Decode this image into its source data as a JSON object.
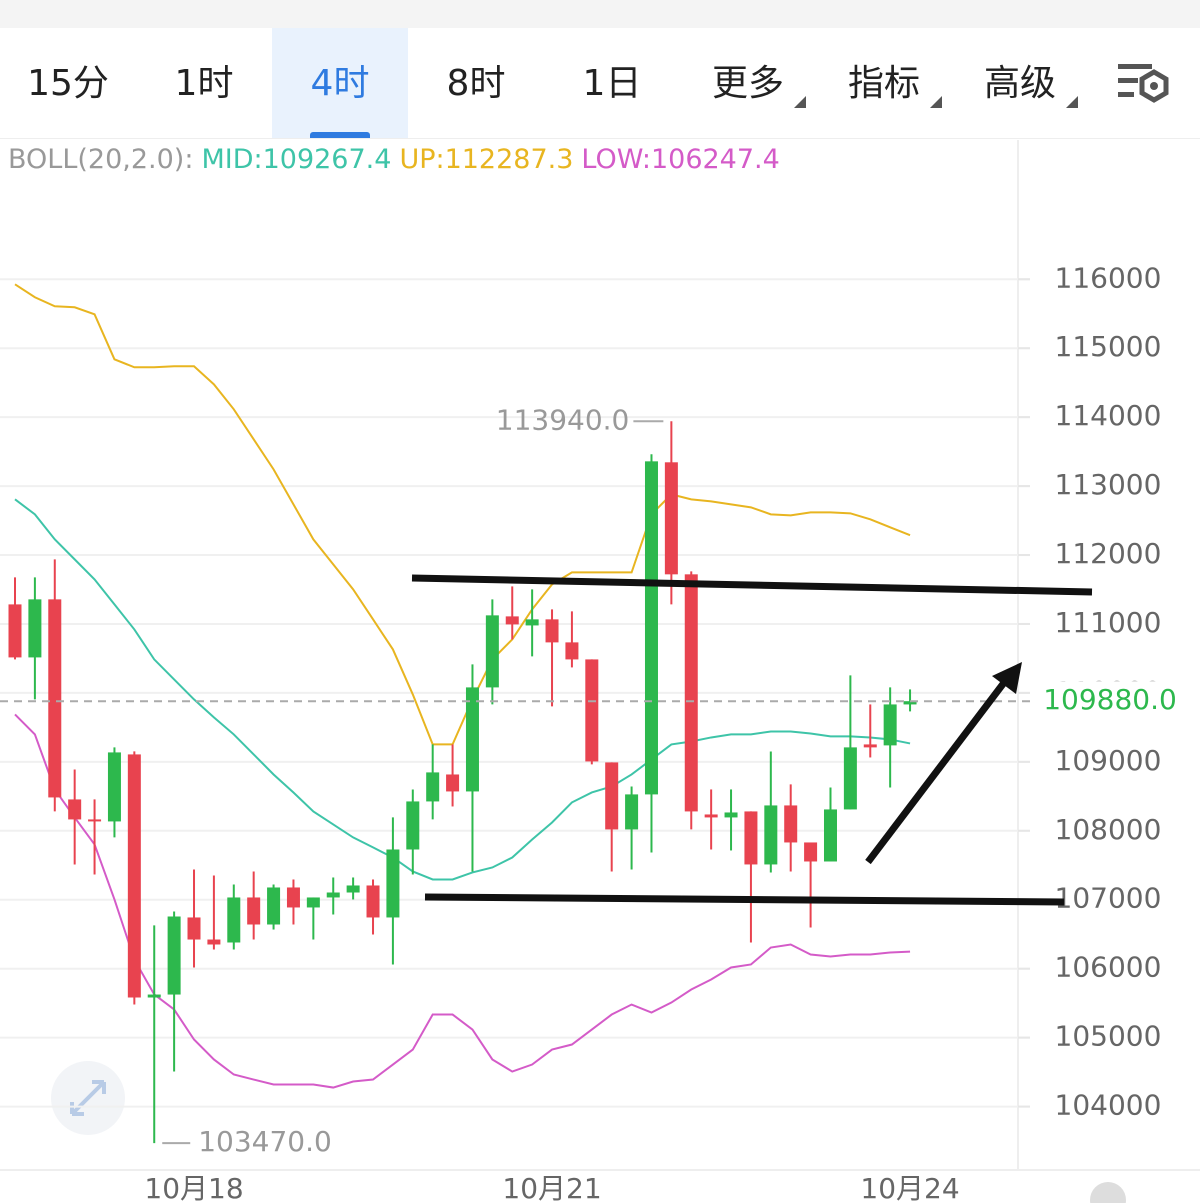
{
  "tabs": [
    "15分",
    "1时",
    "4时",
    "8时",
    "1日",
    "更多",
    "指标",
    "高级"
  ],
  "active_tab": 2,
  "chart_data": {
    "type": "candlestick",
    "indicator": "BOLL(20,2.0):",
    "categories": [
      null,
      null,
      null,
      null,
      null,
      null,
      null,
      null,
      null,
      "10月18",
      null,
      null,
      null,
      null,
      null,
      null,
      null,
      null,
      null,
      null,
      null,
      null,
      null,
      null,
      null,
      null,
      null,
      "10月21",
      null,
      null,
      null,
      null,
      null,
      null,
      null,
      null,
      null,
      null,
      null,
      null,
      null,
      null,
      null,
      null,
      null,
      "10月24"
    ],
    "open": [
      111284,
      110515,
      111357,
      108455,
      108165,
      108136,
      109108,
      105582,
      105625,
      106743,
      106423,
      106380,
      107033,
      106641,
      107178,
      106888,
      107033,
      107105,
      107207,
      106743,
      107729,
      108426,
      108817,
      108571,
      110080,
      111110,
      110979,
      111067,
      110733,
      110486,
      108992,
      108020,
      108528,
      113345,
      111720,
      108237,
      108194,
      108281,
      107512,
      108368,
      107831,
      107555,
      108310,
      109253,
      109239,
      109833
    ],
    "high": [
      111676,
      111676,
      111937,
      108890,
      108455,
      109210,
      109152,
      106628,
      106830,
      107439,
      107352,
      107221,
      107410,
      107221,
      107294,
      107033,
      107323,
      107323,
      107294,
      108194,
      108600,
      109253,
      109253,
      110414,
      111357,
      111545,
      111502,
      111212,
      111183,
      110486,
      108992,
      108643,
      113461,
      113940,
      111763,
      108600,
      108600,
      108281,
      109151,
      108673,
      107831,
      108629,
      110254,
      109833,
      110080,
      110051
    ],
    "low": [
      110486,
      109906,
      108281,
      107512,
      107367,
      107904,
      105480,
      103470,
      104508,
      106017,
      106279,
      106279,
      106423,
      106568,
      106641,
      106423,
      106786,
      107004,
      106496,
      106061,
      107367,
      108165,
      108353,
      107410,
      109833,
      110776,
      110530,
      109804,
      110370,
      108963,
      107410,
      107439,
      107686,
      111284,
      108020,
      107729,
      107715,
      106380,
      107396,
      107410,
      106597,
      107555,
      108310,
      109064,
      108629,
      109732
    ],
    "close": [
      110515,
      111357,
      108484,
      108165,
      108136,
      109137,
      105582,
      105625,
      106757,
      106423,
      106351,
      107033,
      106641,
      107178,
      106888,
      107033,
      107105,
      107207,
      106743,
      107729,
      108426,
      108847,
      108571,
      110080,
      111125,
      110994,
      111067,
      110733,
      110486,
      109006,
      108020,
      108528,
      113359,
      111720,
      108281,
      108194,
      108266,
      107512,
      108368,
      107831,
      107555,
      108310,
      109210,
      109210,
      109833,
      109880
    ],
    "up_color": "#2db84d",
    "down_color": "#e8434f",
    "series": [
      {
        "name": "MID:",
        "color": "#3ec4a8",
        "values": [
          112808,
          112590,
          112227,
          111937,
          111647,
          111284,
          110921,
          110486,
          110196,
          109906,
          109645,
          109398,
          109108,
          108817,
          108556,
          108281,
          108092,
          107904,
          107759,
          107613,
          107410,
          107294,
          107294,
          107396,
          107468,
          107613,
          107874,
          108121,
          108412,
          108556,
          108643,
          108817,
          109035,
          109253,
          109296,
          109354,
          109398,
          109398,
          109441,
          109441,
          109412,
          109369,
          109369,
          109354,
          109325,
          109267.4
        ]
      },
      {
        "name": "UP:",
        "color": "#e8b520",
        "values": [
          115927,
          115739,
          115608,
          115594,
          115492,
          114839,
          114723,
          114723,
          114738,
          114738,
          114476,
          114114,
          113679,
          113243,
          112735,
          112227,
          111864,
          111502,
          111067,
          110631,
          109978,
          109253,
          109253,
          109906,
          110486,
          110776,
          111212,
          111574,
          111748,
          111748,
          111748,
          111748,
          112590,
          112880,
          112808,
          112779,
          112735,
          112692,
          112590,
          112576,
          112619,
          112619,
          112605,
          112518,
          112402,
          112287.3
        ]
      },
      {
        "name": "LOW:",
        "color": "#d45bc8",
        "values": [
          109688,
          109398,
          108600,
          108194,
          107802,
          107004,
          106133,
          105626,
          105408,
          104973,
          104683,
          104465,
          104392,
          104320,
          104320,
          104320,
          104276,
          104363,
          104392,
          104610,
          104827,
          105335,
          105335,
          105117,
          104683,
          104508,
          104610,
          104827,
          104900,
          105117,
          105335,
          105480,
          105364,
          105509,
          105698,
          105843,
          106017,
          106061,
          106307,
          106351,
          106206,
          106177,
          106206,
          106206,
          106235,
          106247.4
        ]
      }
    ],
    "last_price": {
      "value": 109880,
      "label": "109880.0"
    },
    "high_mark": {
      "value": 113940,
      "label": "113940.0"
    },
    "low_mark": {
      "value": 103470,
      "label": "103470.0"
    },
    "ylim": [
      103080,
      118020
    ],
    "yticks": [
      104000,
      105000,
      106000,
      107000,
      108000,
      109000,
      110000,
      111000,
      112000,
      113000,
      114000,
      115000,
      116000
    ],
    "grid": true
  }
}
